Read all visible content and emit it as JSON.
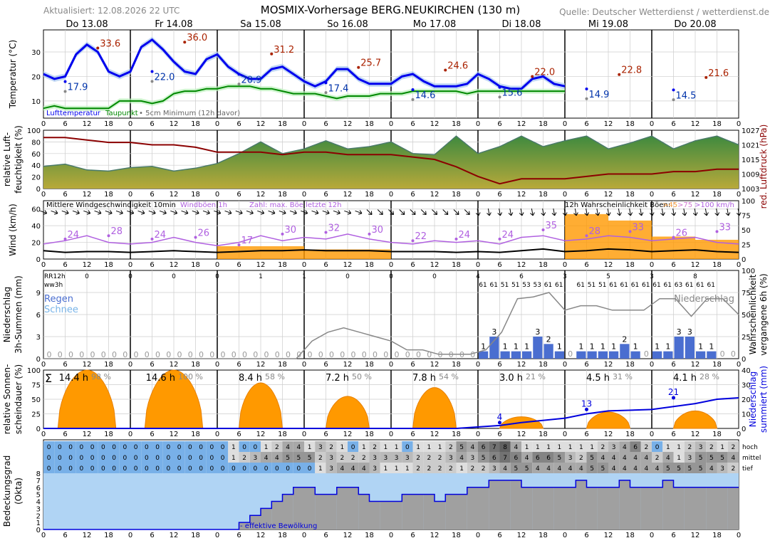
{
  "header": {
    "updated": "Aktualisiert: 12.08.2026 22 UTC",
    "title": "MOSMIX-Vorhersage BERG.NEUKIRCHEN (130 m)",
    "source": "Quelle: Deutscher Wetterdienst / wetterdienst.de"
  },
  "days": [
    "Do 13.08",
    "Fr 14.08",
    "Sa 15.08",
    "So 16.08",
    "Mo 17.08",
    "Di 18.08",
    "Mi 19.08",
    "Do 20.08"
  ],
  "hour_ticks": [
    "0",
    "6",
    "12",
    "18"
  ],
  "colors": {
    "temp": "#0000ee",
    "temp_band": "#a8c8f0",
    "dew": "#008800",
    "dew_band": "#b8f0b8",
    "max": "#aa2200",
    "min_marker": "#888888",
    "humidity_fill": "#5a9a4a",
    "pressure": "#8b0000",
    "gust": "#b060e0",
    "wind": "#000000",
    "prob": "#ff9900",
    "rain_bar": "#4a6ed0",
    "rain_prob": "#888888",
    "sun": "#ff9900",
    "sun_sum": "#0000dd",
    "cloud_sky": "#b0d4f4",
    "cloud_grey": "#a0a0a0"
  },
  "panels": {
    "temperature": {
      "ylabel": "Temperatur (°C)",
      "yticks": [
        "10",
        "20",
        "30"
      ],
      "legend": {
        "t": "Lufttemperatur",
        "td": "Taupunkt",
        "min": "• 5cm Minimum (12h davor)"
      },
      "max_labels": [
        "33.6",
        "36.0",
        "31.2",
        "25.7",
        "24.6",
        "22.0",
        "22.8",
        "21.6"
      ],
      "min_labels": [
        "17.9",
        "22.0",
        "20.9",
        "17.4",
        "14.6",
        "15.6",
        "14.9",
        "14.5"
      ]
    },
    "humidity": {
      "ylabel": "relative Luft-\nfeuchtigkeit (%)",
      "ylabel1": "relative Luft-",
      "ylabel2": "feuchtigkeit (%)",
      "yticks": [
        "0",
        "20",
        "40",
        "60",
        "80",
        "100"
      ],
      "y2label": "red. Luftdruck (hPa)",
      "y2ticks": [
        "1003",
        "1009",
        "1015",
        "1021",
        "1027"
      ]
    },
    "wind": {
      "ylabel": "Wind (km/h)",
      "yticks": [
        "0",
        "20",
        "40",
        "60"
      ],
      "y2ticks": [
        "0",
        "25",
        "50",
        "75",
        "100"
      ],
      "legend_wind": "Mittlere Windgeschwindigkeit 10min",
      "legend_gust": "Windböen 1h",
      "legend_num": "Zahl: max. Böe letzte 12h",
      "legend_prob": "12h Wahrscheinlichkeit Böen:",
      "legend_45": ">45",
      "legend_75": ">75",
      "legend_100": ">100 km/h",
      "gust_labels": [
        "24",
        "28",
        "24",
        "26",
        "17",
        "30",
        "32",
        "30",
        "22",
        "24",
        "24",
        "35",
        "28",
        "33",
        "26",
        "33"
      ]
    },
    "precip": {
      "ylabel1": "Niederschlag",
      "ylabel2": "3h-Summen (mm)",
      "y2label1": "Wahrscheinlichkeit",
      "y2label2": "vergangene 6h (%)",
      "yticks": [
        "0",
        "3",
        "6",
        "9"
      ],
      "y2ticks": [
        "0",
        "25",
        "50",
        "75",
        "100"
      ],
      "rr12h_label": "RR12h",
      "ww3h_label": "ww3h",
      "regen": "Regen",
      "schnee": "Schnee",
      "niederschlag": "Niederschlag",
      "rr12h": [
        "0",
        "0",
        "0",
        "0",
        "1",
        "1",
        "0",
        "0",
        "0",
        "4",
        "6",
        "3",
        "5",
        "3",
        "8"
      ],
      "ww3h": [
        "61",
        "61",
        "51",
        "51",
        "53",
        "53",
        "61",
        "61",
        "",
        "61",
        "51",
        "51",
        "61",
        "61",
        "61",
        "61",
        "61",
        "61",
        "63",
        "61",
        "61",
        "61"
      ]
    },
    "sun": {
      "ylabel1": "relative Sonnen-",
      "ylabel2": "scheindauer (%)",
      "y2label1": "Niederschlag",
      "y2label2": "summiert (mm)",
      "yticks": [
        "0",
        "25",
        "50",
        "75",
        "100"
      ],
      "y2ticks": [
        "0",
        "10",
        "20",
        "30",
        "40"
      ],
      "sigma": "Σ",
      "hours": [
        "14.4 h",
        "14.6 h",
        "8.4 h",
        "7.2 h",
        "7.8 h",
        "3.0 h",
        "4.5 h",
        "4.1 h"
      ],
      "percent": [
        "98 %",
        "100 %",
        "58 %",
        "50 %",
        "54 %",
        "21 %",
        "31 %",
        "28 %"
      ],
      "sum_labels": [
        "4",
        "13",
        "21"
      ]
    },
    "cloud": {
      "ylabel1": "Bedeckungsgrad",
      "ylabel2": "(Okta)",
      "yticks": [
        "0",
        "1",
        "2",
        "3",
        "4",
        "5",
        "6",
        "7",
        "8"
      ],
      "row_labels": [
        "hoch",
        "mittel",
        "tief"
      ],
      "legend": "- effektive Bewölkung",
      "hoch": [
        "0",
        "0",
        "0",
        "0",
        "0",
        "0",
        "0",
        "0",
        "0",
        "0",
        "0",
        "0",
        "0",
        "0",
        "0",
        "0",
        "0",
        "1",
        "0",
        "0",
        "1",
        "2",
        "4",
        "4",
        "1",
        "3",
        "2",
        "1",
        "0",
        "1",
        "2",
        "1",
        "1",
        "0",
        "1",
        "1",
        "1",
        "2",
        "5",
        "4",
        "6",
        "7",
        "8",
        "4",
        "1",
        "1",
        "1",
        "1",
        "1",
        "1",
        "1",
        "2",
        "3",
        "4",
        "6",
        "2",
        "0",
        "1",
        "1",
        "2",
        "3",
        "2",
        "1",
        "2"
      ],
      "mittel": [
        "0",
        "0",
        "0",
        "0",
        "0",
        "0",
        "0",
        "0",
        "0",
        "0",
        "0",
        "0",
        "0",
        "0",
        "0",
        "0",
        "0",
        "1",
        "2",
        "3",
        "4",
        "4",
        "5",
        "5",
        "5",
        "2",
        "3",
        "2",
        "2",
        "2",
        "3",
        "3",
        "3",
        "3",
        "2",
        "2",
        "2",
        "3",
        "4",
        "3",
        "5",
        "6",
        "7",
        "6",
        "4",
        "6",
        "6",
        "5",
        "3",
        "2",
        "5",
        "4",
        "4",
        "4",
        "4",
        "4",
        "2",
        "4",
        "1",
        "3",
        "5",
        "5",
        "5",
        "4"
      ],
      "tief": [
        "0",
        "0",
        "0",
        "0",
        "0",
        "0",
        "0",
        "0",
        "0",
        "0",
        "0",
        "0",
        "0",
        "0",
        "0",
        "0",
        "0",
        "0",
        "0",
        "0",
        "0",
        "0",
        "0",
        "0",
        "0",
        "1",
        "3",
        "4",
        "4",
        "4",
        "3",
        "1",
        "1",
        "1",
        "2",
        "2",
        "2",
        "2",
        "1",
        "2",
        "2",
        "3",
        "4",
        "5",
        "5",
        "4",
        "4",
        "4",
        "4",
        "4",
        "5",
        "5",
        "4",
        "4",
        "4",
        "4",
        "4",
        "5",
        "5",
        "5",
        "5",
        "4",
        "3",
        "2"
      ]
    }
  },
  "chart_data": [
    {
      "type": "line",
      "title": "Temperatur (°C)",
      "ylim": [
        3,
        39
      ],
      "series": [
        {
          "name": "Lufttemperatur",
          "hours_step": 3,
          "values": [
            21,
            19,
            20,
            29,
            33,
            30,
            22,
            20,
            22,
            32,
            35,
            31,
            26,
            22,
            21,
            27,
            29,
            24,
            21,
            19,
            19,
            23,
            24,
            21,
            18,
            16,
            18,
            23,
            23,
            19,
            17,
            17,
            17,
            20,
            21,
            18,
            16,
            16,
            16,
            17,
            21,
            19,
            16,
            15,
            15,
            19,
            20,
            17,
            16
          ]
        },
        {
          "name": "Taupunkt",
          "hours_step": 3,
          "values": [
            7,
            8,
            7,
            7,
            7,
            7,
            7,
            10,
            10,
            10,
            9,
            10,
            13,
            14,
            14,
            15,
            15,
            16,
            16,
            16,
            15,
            15,
            14,
            13,
            13,
            13,
            12,
            11,
            12,
            12,
            12,
            13,
            13,
            13,
            14,
            14,
            14,
            14,
            14,
            13,
            14,
            14,
            14,
            14,
            14,
            14,
            14,
            14,
            14
          ]
        }
      ],
      "max_values": [
        33.6,
        36.0,
        31.2,
        25.7,
        24.6,
        22.0,
        22.8,
        21.6
      ],
      "min_values": [
        17.9,
        22.0,
        20.9,
        17.4,
        14.6,
        15.6,
        14.9,
        14.5
      ]
    },
    {
      "type": "area",
      "title": "relative Luftfeuchtigkeit (%) / red. Luftdruck (hPa)",
      "ylim": [
        0,
        100
      ],
      "series": [
        {
          "name": "relative Luftfeuchtigkeit",
          "hours_step": 6,
          "values": [
            38,
            42,
            32,
            30,
            36,
            38,
            30,
            35,
            43,
            60,
            80,
            60,
            68,
            82,
            68,
            72,
            80,
            60,
            58,
            90,
            60,
            72,
            90,
            72,
            82,
            90,
            68,
            78,
            90,
            68,
            82,
            90,
            75
          ]
        },
        {
          "name": "red. Luftdruck",
          "hours_step": 6,
          "values": [
            1024,
            1024,
            1023,
            1022,
            1022,
            1021,
            1021,
            1020,
            1018,
            1018,
            1018,
            1017,
            1018,
            1018,
            1017,
            1017,
            1017,
            1016,
            1015,
            1012,
            1008,
            1005,
            1007,
            1007,
            1007,
            1008,
            1009,
            1009,
            1009,
            1010,
            1010,
            1011,
            1011
          ]
        }
      ]
    },
    {
      "type": "line",
      "title": "Wind (km/h)",
      "ylim": [
        0,
        70
      ],
      "series": [
        {
          "name": "Windböen 1h",
          "hours_step": 6,
          "values": [
            18,
            22,
            28,
            20,
            18,
            20,
            26,
            20,
            16,
            20,
            28,
            22,
            26,
            24,
            30,
            24,
            20,
            18,
            22,
            20,
            22,
            18,
            26,
            28,
            22,
            24,
            28,
            26,
            22,
            24,
            26,
            20,
            18
          ]
        },
        {
          "name": "Mittlere Windgeschwindigkeit 10min",
          "hours_step": 6,
          "values": [
            10,
            8,
            9,
            9,
            8,
            9,
            10,
            9,
            8,
            9,
            10,
            10,
            11,
            10,
            10,
            10,
            9,
            9,
            9,
            8,
            9,
            8,
            10,
            12,
            9,
            10,
            12,
            11,
            9,
            10,
            11,
            9,
            8
          ]
        }
      ],
      "gust_max_12h": [
        24,
        28,
        24,
        26,
        17,
        30,
        32,
        30,
        22,
        24,
        24,
        35,
        28,
        33,
        26,
        33
      ]
    },
    {
      "type": "bar",
      "title": "Niederschlag 3h-Summen (mm)",
      "ylim": [
        0,
        12
      ],
      "categories_3h_from_hour": 120,
      "values": [
        1,
        3,
        1,
        1,
        1,
        3,
        2,
        1,
        0,
        1,
        1,
        1,
        1,
        2,
        1,
        0,
        1,
        1,
        3,
        3,
        1,
        1,
        0,
        0
      ],
      "rr12h": [
        0,
        0,
        0,
        0,
        1,
        1,
        0,
        0,
        0,
        4,
        6,
        3,
        5,
        3,
        8
      ],
      "probability_6h": [
        0,
        0,
        0,
        0,
        0,
        0,
        0,
        0,
        0,
        0,
        0,
        0,
        0,
        0,
        0,
        0,
        0,
        20,
        30,
        35,
        30,
        25,
        20,
        10,
        10,
        5,
        5,
        5,
        10,
        30,
        68,
        70,
        75,
        55,
        60,
        60,
        55,
        55,
        55,
        68,
        68,
        48,
        68,
        68,
        50
      ]
    },
    {
      "type": "area",
      "title": "relative Sonnenscheindauer (%)",
      "ylim": [
        0,
        100
      ],
      "daily_hours": [
        14.4,
        14.6,
        8.4,
        7.2,
        7.8,
        3.0,
        4.5,
        4.1
      ],
      "daily_percent": [
        98,
        100,
        58,
        50,
        54,
        21,
        31,
        28
      ],
      "daily_peak_percent": [
        100,
        100,
        78,
        55,
        70,
        20,
        28,
        30
      ],
      "precip_sum_mm": {
        "hours": [
          0,
          114,
          126,
          132,
          144,
          150,
          156,
          168,
          174,
          180,
          186,
          192
        ],
        "values": [
          0,
          0,
          2,
          4,
          7,
          10,
          12,
          13,
          15,
          17,
          20,
          21
        ]
      }
    },
    {
      "type": "area",
      "title": "Bedeckungsgrad (Okta)",
      "ylim": [
        0,
        8
      ],
      "effective_cloud_hours_step": 3,
      "effective_cloud": [
        0,
        0,
        0,
        0,
        0,
        0,
        0,
        0,
        0,
        0,
        0,
        0,
        0,
        0,
        0,
        0,
        0,
        0,
        1,
        2,
        3,
        4,
        5,
        6,
        6,
        5,
        5,
        6,
        6,
        5,
        4,
        4,
        4,
        5,
        5,
        5,
        4,
        5,
        5,
        6,
        6,
        7,
        7,
        7,
        6,
        6,
        6,
        6,
        6,
        7,
        6,
        6,
        6,
        7,
        6,
        6,
        6,
        7,
        6,
        6,
        6,
        6,
        6,
        6
      ]
    }
  ]
}
